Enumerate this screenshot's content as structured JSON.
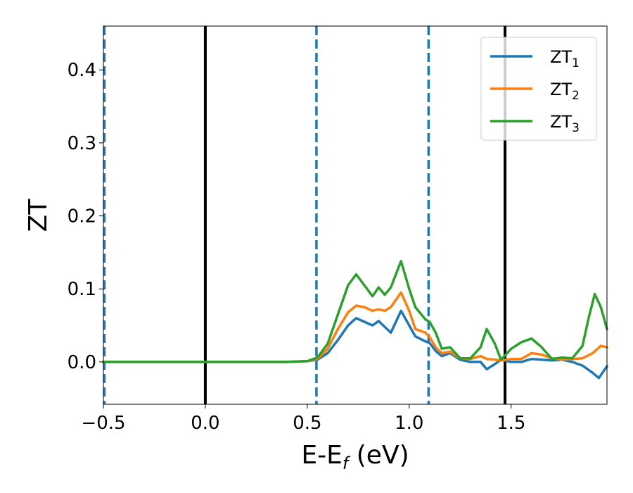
{
  "chart_data": {
    "type": "line",
    "title": "",
    "xlabel": "E-E",
    "xlabel_sub": "f",
    "xlabel_unit": " (eV)",
    "ylabel": "ZT",
    "xlim": [
      -0.5,
      1.97
    ],
    "ylim": [
      -0.058,
      0.46
    ],
    "xticks": [
      -0.5,
      0.0,
      0.5,
      1.0,
      1.5
    ],
    "xtick_labels": [
      "−0.5",
      "0.0",
      "0.5",
      "1.0",
      "1.5"
    ],
    "yticks": [
      0.0,
      0.1,
      0.2,
      0.3,
      0.4
    ],
    "ytick_labels": [
      "0.0",
      "0.1",
      "0.2",
      "0.3",
      "0.4"
    ],
    "grid": false,
    "legend_position": "top-right",
    "vlines": [
      {
        "x": -0.495,
        "style": "dashed",
        "color": "#1f77b4"
      },
      {
        "x": 0.0,
        "style": "solid",
        "color": "#000000"
      },
      {
        "x": 0.545,
        "style": "dashed",
        "color": "#1f77b4"
      },
      {
        "x": 1.095,
        "style": "dashed",
        "color": "#1f77b4"
      },
      {
        "x": 1.47,
        "style": "solid",
        "color": "#000000"
      }
    ],
    "series": [
      {
        "name": "ZT",
        "sub": "1",
        "color": "#1f77b4",
        "x": [
          -0.5,
          0.4,
          0.5,
          0.55,
          0.6,
          0.65,
          0.7,
          0.74,
          0.78,
          0.82,
          0.85,
          0.88,
          0.91,
          0.96,
          1.0,
          1.03,
          1.08,
          1.1,
          1.13,
          1.16,
          1.2,
          1.25,
          1.3,
          1.35,
          1.38,
          1.42,
          1.45,
          1.5,
          1.55,
          1.6,
          1.65,
          1.7,
          1.75,
          1.8,
          1.85,
          1.9,
          1.93,
          1.97
        ],
        "y": [
          0.0,
          0.0,
          0.001,
          0.003,
          0.012,
          0.03,
          0.05,
          0.06,
          0.055,
          0.05,
          0.056,
          0.048,
          0.04,
          0.07,
          0.05,
          0.035,
          0.028,
          0.026,
          0.015,
          0.008,
          0.012,
          0.003,
          0.0,
          0.0,
          -0.01,
          -0.003,
          0.003,
          0.0,
          0.0,
          0.004,
          0.003,
          0.002,
          0.003,
          0.0,
          -0.005,
          -0.015,
          -0.022,
          -0.006
        ]
      },
      {
        "name": "ZT",
        "sub": "2",
        "color": "#ff7f0e",
        "x": [
          -0.5,
          0.4,
          0.5,
          0.55,
          0.6,
          0.65,
          0.7,
          0.74,
          0.78,
          0.82,
          0.85,
          0.88,
          0.91,
          0.96,
          1.0,
          1.03,
          1.08,
          1.1,
          1.13,
          1.16,
          1.2,
          1.25,
          1.3,
          1.35,
          1.38,
          1.42,
          1.45,
          1.5,
          1.55,
          1.6,
          1.65,
          1.7,
          1.75,
          1.8,
          1.85,
          1.9,
          1.94,
          1.97
        ],
        "y": [
          0.0,
          0.0,
          0.001,
          0.004,
          0.018,
          0.045,
          0.068,
          0.077,
          0.075,
          0.07,
          0.072,
          0.07,
          0.075,
          0.095,
          0.07,
          0.045,
          0.04,
          0.034,
          0.02,
          0.012,
          0.014,
          0.005,
          0.004,
          0.008,
          0.004,
          0.003,
          0.002,
          0.004,
          0.004,
          0.012,
          0.01,
          0.005,
          0.003,
          0.004,
          0.005,
          0.012,
          0.022,
          0.02
        ]
      },
      {
        "name": "ZT",
        "sub": "3",
        "color": "#2ca02c",
        "x": [
          -0.5,
          0.4,
          0.5,
          0.55,
          0.6,
          0.65,
          0.7,
          0.74,
          0.78,
          0.82,
          0.85,
          0.88,
          0.91,
          0.96,
          1.0,
          1.03,
          1.08,
          1.1,
          1.13,
          1.16,
          1.2,
          1.25,
          1.3,
          1.35,
          1.38,
          1.42,
          1.45,
          1.5,
          1.55,
          1.6,
          1.65,
          1.7,
          1.75,
          1.8,
          1.85,
          1.88,
          1.91,
          1.94,
          1.97
        ],
        "y": [
          0.0,
          0.0,
          0.001,
          0.006,
          0.025,
          0.065,
          0.105,
          0.12,
          0.105,
          0.09,
          0.102,
          0.092,
          0.102,
          0.138,
          0.1,
          0.075,
          0.058,
          0.055,
          0.04,
          0.018,
          0.02,
          0.005,
          0.005,
          0.02,
          0.045,
          0.025,
          0.003,
          0.018,
          0.027,
          0.032,
          0.02,
          0.004,
          0.006,
          0.005,
          0.022,
          0.06,
          0.093,
          0.075,
          0.045
        ]
      }
    ]
  }
}
